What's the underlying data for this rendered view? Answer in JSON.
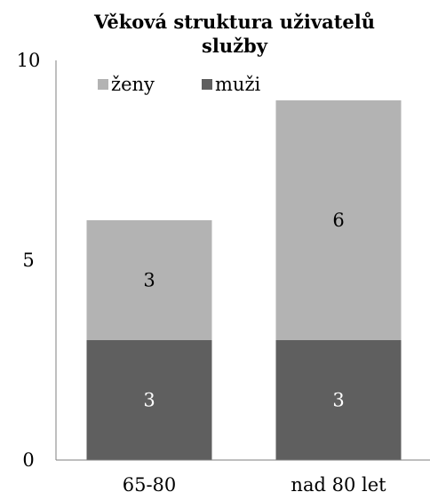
{
  "chart_data": {
    "type": "bar",
    "stacked": true,
    "title": "Věková struktura uživatelů služby",
    "title_lines": [
      "Věková struktura uživatelů",
      "služby"
    ],
    "categories": [
      "65-80",
      "nad 80 let"
    ],
    "series": [
      {
        "name": "muži",
        "values": [
          3,
          3
        ],
        "color": "#5f5f5f",
        "label_color": "#ffffff"
      },
      {
        "name": "ženy",
        "values": [
          3,
          6
        ],
        "color": "#b3b3b3",
        "label_color": "#000000"
      }
    ],
    "legend_order": [
      "ženy",
      "muži"
    ],
    "legend_position": "top-left",
    "ylim": [
      0,
      10
    ],
    "yticks": [
      0,
      5,
      10
    ],
    "xlabel": "",
    "ylabel": "",
    "grid": false
  }
}
